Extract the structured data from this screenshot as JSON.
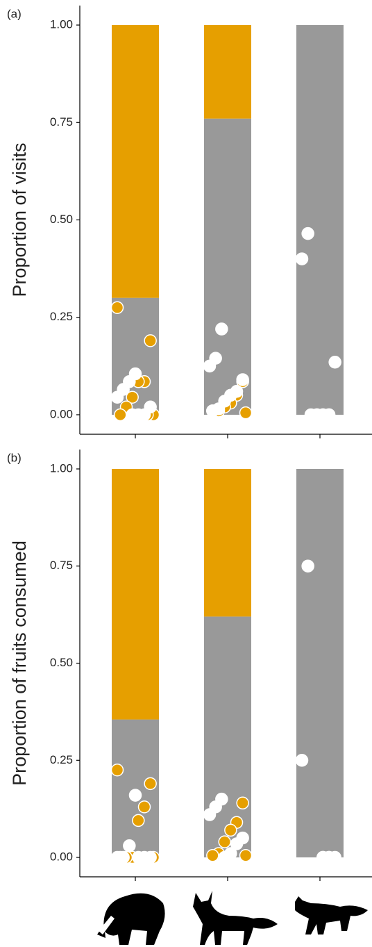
{
  "chart_data": [
    {
      "type": "bar",
      "stacked": true,
      "panel_label": "(a)",
      "ylabel": "Proportion of visits",
      "categories": [
        null,
        null,
        null
      ],
      "series": [
        {
          "color": "#999999",
          "values": [
            0.3,
            0.76,
            1.0
          ]
        },
        {
          "color": "#e69f00",
          "values": [
            0.7,
            0.24,
            0.0
          ]
        }
      ],
      "points": [
        {
          "color": "#e69f00",
          "values": [
            [
              0.275,
              0.19,
              0.085,
              0.085,
              0.045,
              0.02,
              0,
              0,
              0
            ],
            [
              0.085,
              0.05,
              0.03,
              0.02,
              0.01,
              0.01,
              0.005
            ],
            [
              0,
              0,
              0
            ]
          ]
        },
        {
          "color": "#ffffff",
          "values": [
            [
              0.105,
              0.085,
              0.065,
              0.045,
              0.02,
              0,
              0,
              0
            ],
            [
              0.22,
              0.145,
              0.125,
              0.09,
              0.06,
              0.05,
              0.035,
              0.015,
              0.01
            ],
            [
              0.465,
              0.4,
              0.135,
              0,
              0,
              0,
              0
            ]
          ]
        }
      ],
      "ylim": [
        -0.05,
        1.05
      ],
      "yticks": [
        {
          "value": 0,
          "label": "0.00"
        },
        {
          "value": 0.25,
          "label": "0.25"
        },
        {
          "value": 0.5,
          "label": "0.50"
        },
        {
          "value": 0.75,
          "label": "0.75"
        },
        {
          "value": 1,
          "label": "1.00"
        }
      ]
    },
    {
      "type": "bar",
      "stacked": true,
      "panel_label": "(b)",
      "ylabel": "Proportion of fruits consumed",
      "categories": [
        null,
        null,
        null
      ],
      "series": [
        {
          "color": "#999999",
          "values": [
            0.355,
            0.62,
            1.0
          ]
        },
        {
          "color": "#e69f00",
          "values": [
            0.645,
            0.38,
            0.0
          ]
        }
      ],
      "points": [
        {
          "color": "#e69f00",
          "values": [
            [
              0.225,
              0.19,
              0.13,
              0.095,
              0,
              0,
              0,
              0
            ],
            [
              0.14,
              0.09,
              0.07,
              0.04,
              0.01,
              0.005,
              0.005
            ],
            [
              0,
              0
            ]
          ]
        },
        {
          "color": "#ffffff",
          "values": [
            [
              0.16,
              0.03,
              0,
              0,
              0,
              0,
              0
            ],
            [
              0.15,
              0.13,
              0.11,
              0.05,
              0.035,
              0.01,
              0
            ],
            [
              0.75,
              0.25,
              0,
              0,
              0
            ]
          ]
        }
      ],
      "ylim": [
        -0.05,
        1.05
      ],
      "yticks": [
        {
          "value": 0,
          "label": "0.00"
        },
        {
          "value": 0.25,
          "label": "0.25"
        },
        {
          "value": 0.5,
          "label": "0.50"
        },
        {
          "value": 0.75,
          "label": "0.75"
        },
        {
          "value": 1,
          "label": "1.00"
        }
      ]
    }
  ]
}
